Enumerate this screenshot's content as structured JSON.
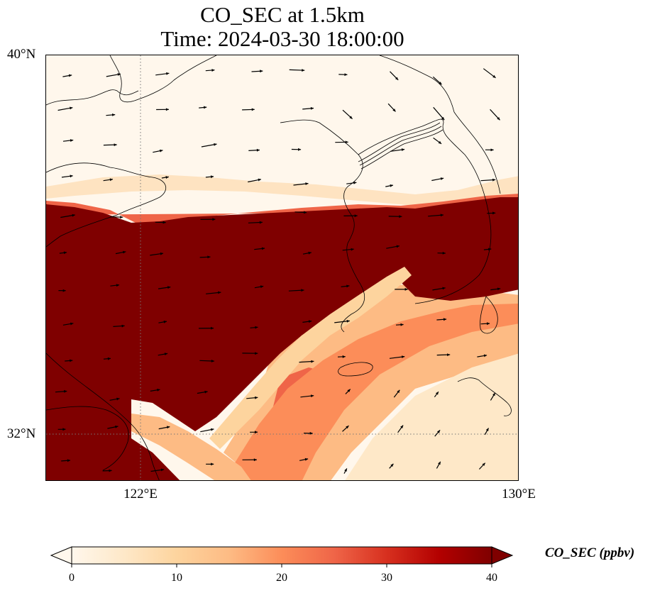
{
  "title": {
    "line1": "CO_SEC at 1.5km",
    "line2": "Time: 2024-03-30 18:00:00"
  },
  "axes": {
    "lat_labels": [
      {
        "text": "40°N",
        "value": 40
      },
      {
        "text": "32°N",
        "value": 32
      }
    ],
    "lon_labels": [
      {
        "text": "122°E",
        "value": 122
      },
      {
        "text": "130°E",
        "value": 130
      }
    ],
    "lon_range": [
      120,
      130
    ],
    "lat_range": [
      31,
      40
    ],
    "gridlines": {
      "lon": [
        122
      ],
      "lat": [
        32
      ],
      "style": "dotted"
    }
  },
  "colorbar": {
    "label": "CO_SEC (ppbv)",
    "ticks": [
      {
        "text": "0",
        "value": 0
      },
      {
        "text": "10",
        "value": 10
      },
      {
        "text": "20",
        "value": 20
      },
      {
        "text": "30",
        "value": 30
      },
      {
        "text": "40",
        "value": 40
      }
    ],
    "range": [
      0,
      40
    ],
    "extend": "both",
    "colormap": "OrRd",
    "stops": [
      "#fff7ec",
      "#fee8c8",
      "#fdd49e",
      "#fdbb84",
      "#fc8d59",
      "#ef6548",
      "#d7301f",
      "#b30000",
      "#7f0000"
    ]
  },
  "field": {
    "variable": "CO_SEC",
    "level": "1.5km",
    "units": "ppbv"
  },
  "colors": {
    "low": "#fff7ec",
    "high": "#7f0000",
    "coast": "#000000",
    "grid": "#777777"
  }
}
